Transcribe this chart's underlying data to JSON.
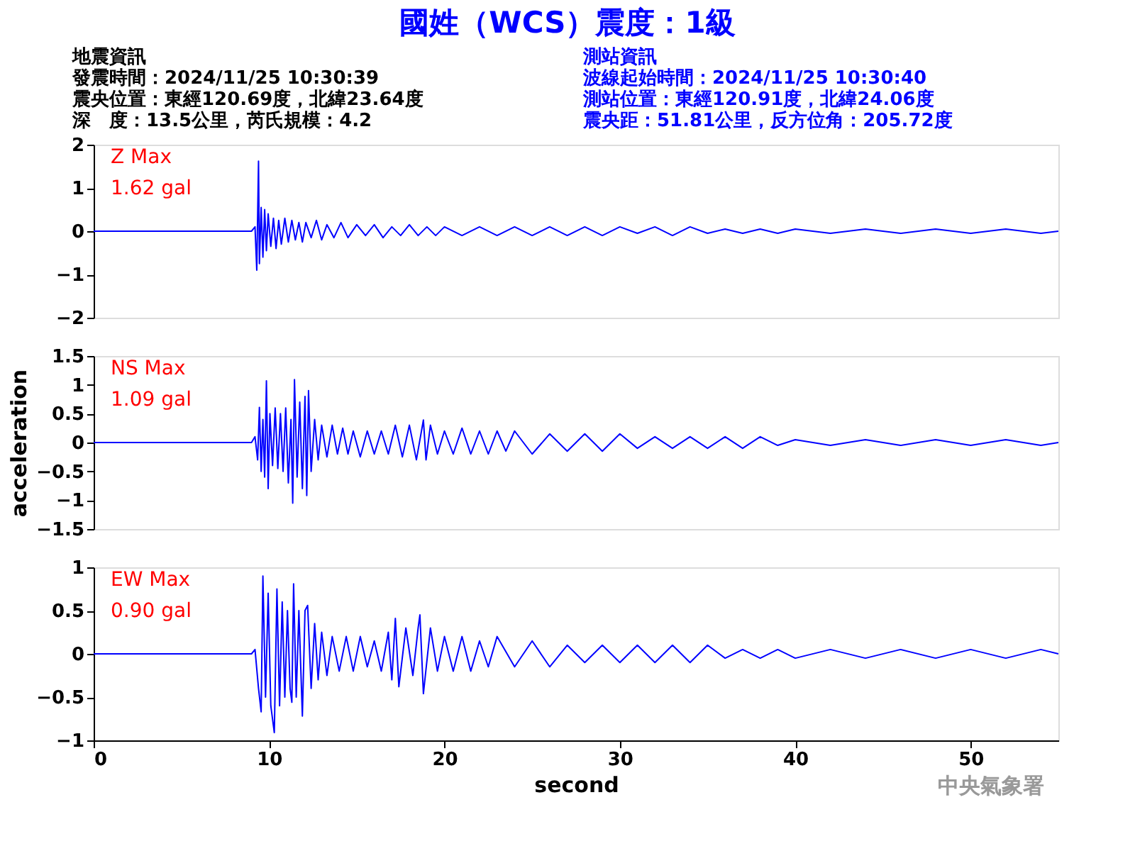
{
  "chart_data": [
    {
      "type": "line",
      "title": "國姓（WCS）震度：1級",
      "xlim": [
        0,
        55
      ],
      "xticks": [
        0,
        10,
        20,
        30,
        40,
        50
      ],
      "ylim": [
        -2,
        2
      ],
      "yticks": [
        -2,
        -1,
        0,
        1,
        2
      ],
      "tick_labels": "y",
      "grid": false,
      "annotations": [
        "Z Max",
        "1.62 gal",
        "地震資訊",
        "發震時間：2024/11/25 10:30:39",
        "震央位置：東經120.69度，北緯23.64度",
        "深　度：13.5公里，芮氏規模：4.2",
        "測站資訊",
        "波線起始時間：2024/11/25 10:30:40",
        "測站位置：東經120.91度，北緯24.06度",
        "震央距：51.81公里，反方位角：205.72度"
      ],
      "series": [
        {
          "color": "#0000ff",
          "x": [
            0,
            9.0,
            9.2,
            9.3,
            9.4,
            9.45,
            9.55,
            9.65,
            9.75,
            9.85,
            9.95,
            10.1,
            10.25,
            10.4,
            10.55,
            10.7,
            10.9,
            11.1,
            11.3,
            11.5,
            11.7,
            11.9,
            12.1,
            12.4,
            12.7,
            13.0,
            13.3,
            13.7,
            14.1,
            14.5,
            15,
            15.5,
            16,
            16.5,
            17,
            17.5,
            18,
            18.5,
            19,
            19.5,
            20,
            21,
            22,
            23,
            24,
            25,
            26,
            27,
            28,
            29,
            30,
            31,
            32,
            33,
            34,
            35,
            36,
            37,
            38,
            39,
            40,
            42,
            44,
            46,
            48,
            50,
            52,
            54,
            55
          ],
          "values": [
            0,
            0,
            0.1,
            -0.9,
            1.62,
            -0.75,
            0.55,
            -0.6,
            0.5,
            -0.45,
            0.4,
            -0.35,
            0.3,
            -0.4,
            0.25,
            -0.3,
            0.3,
            -0.25,
            0.25,
            -0.2,
            0.2,
            -0.25,
            0.2,
            -0.15,
            0.25,
            -0.2,
            0.15,
            -0.15,
            0.2,
            -0.15,
            0.15,
            -0.1,
            0.15,
            -0.15,
            0.1,
            -0.1,
            0.15,
            -0.1,
            0.1,
            -0.1,
            0.1,
            -0.1,
            0.1,
            -0.1,
            0.1,
            -0.1,
            0.1,
            -0.1,
            0.1,
            -0.1,
            0.1,
            -0.05,
            0.1,
            -0.1,
            0.1,
            -0.05,
            0.05,
            -0.05,
            0.05,
            -0.05,
            0.05,
            -0.05,
            0.05,
            -0.05,
            0.05,
            -0.05,
            0.05,
            -0.05,
            0
          ]
        }
      ]
    },
    {
      "type": "line",
      "ylabel": "acceleration",
      "xlim": [
        0,
        55
      ],
      "xticks": [
        0,
        10,
        20,
        30,
        40,
        50
      ],
      "ylim": [
        -1.5,
        1.5
      ],
      "yticks": [
        -1.5,
        -1,
        -0.5,
        0,
        0.5,
        1,
        1.5
      ],
      "tick_labels": "y",
      "grid": false,
      "annotations": [
        "NS Max",
        "1.09 gal"
      ],
      "series": [
        {
          "color": "#0000ff",
          "x": [
            0,
            9.0,
            9.2,
            9.35,
            9.45,
            9.55,
            9.65,
            9.75,
            9.85,
            9.95,
            10.05,
            10.2,
            10.35,
            10.5,
            10.65,
            10.8,
            10.95,
            11.1,
            11.25,
            11.35,
            11.45,
            11.6,
            11.75,
            11.9,
            12.05,
            12.15,
            12.25,
            12.4,
            12.6,
            12.8,
            13.0,
            13.3,
            13.6,
            13.9,
            14.2,
            14.5,
            14.8,
            15.2,
            15.6,
            16.0,
            16.4,
            16.8,
            17.2,
            17.6,
            18.0,
            18.4,
            18.8,
            18.95,
            19.2,
            19.6,
            20.0,
            20.5,
            21,
            21.5,
            22,
            22.5,
            23,
            23.5,
            24,
            25,
            26,
            27,
            28,
            29,
            30,
            31,
            32,
            33,
            34,
            35,
            36,
            37,
            38,
            39,
            40,
            42,
            44,
            46,
            48,
            50,
            52,
            54,
            55
          ],
          "values": [
            0,
            0,
            0.1,
            -0.3,
            0.61,
            -0.5,
            0.4,
            -0.6,
            1.07,
            -0.8,
            0.5,
            -0.4,
            0.6,
            -0.45,
            0.5,
            -0.5,
            0.6,
            -0.7,
            0.4,
            -1.05,
            1.09,
            -0.6,
            0.7,
            -0.8,
            0.8,
            -0.92,
            0.9,
            -0.5,
            0.4,
            -0.3,
            0.3,
            -0.25,
            0.3,
            -0.2,
            0.25,
            -0.2,
            0.2,
            -0.25,
            0.2,
            -0.2,
            0.2,
            -0.2,
            0.3,
            -0.25,
            0.3,
            -0.3,
            0.39,
            -0.3,
            0.3,
            -0.2,
            0.2,
            -0.2,
            0.25,
            -0.2,
            0.2,
            -0.2,
            0.2,
            -0.15,
            0.2,
            -0.2,
            0.15,
            -0.15,
            0.15,
            -0.15,
            0.15,
            -0.1,
            0.1,
            -0.1,
            0.1,
            -0.1,
            0.1,
            -0.1,
            0.1,
            -0.05,
            0.05,
            -0.05,
            0.05,
            -0.05,
            0.05,
            -0.05,
            0.05,
            -0.05,
            0
          ]
        }
      ]
    },
    {
      "type": "line",
      "xlabel": "second",
      "xlim": [
        0,
        55
      ],
      "xticks": [
        0,
        10,
        20,
        30,
        40,
        50
      ],
      "ylim": [
        -1,
        1
      ],
      "yticks": [
        -1,
        -0.5,
        0,
        0.5,
        1
      ],
      "grid": false,
      "annotations": [
        "EW Max",
        "0.90 gal",
        "中央氣象署"
      ],
      "series": [
        {
          "color": "#0000ff",
          "x": [
            0,
            9.0,
            9.2,
            9.4,
            9.55,
            9.65,
            9.8,
            9.95,
            10.1,
            10.3,
            10.45,
            10.6,
            10.75,
            10.9,
            11.05,
            11.2,
            11.3,
            11.4,
            11.55,
            11.7,
            11.9,
            12.05,
            12.2,
            12.4,
            12.6,
            12.8,
            13.0,
            13.3,
            13.6,
            14.0,
            14.4,
            14.8,
            15.2,
            15.6,
            16.0,
            16.4,
            16.8,
            17.0,
            17.2,
            17.4,
            17.8,
            18.2,
            18.5,
            18.6,
            18.8,
            19.2,
            19.6,
            20.0,
            20.5,
            21,
            21.5,
            22,
            22.5,
            23,
            24,
            25,
            26,
            27,
            28,
            29,
            30,
            31,
            32,
            33,
            34,
            35,
            36,
            37,
            38,
            39,
            40,
            42,
            44,
            46,
            48,
            50,
            52,
            54,
            55
          ],
          "values": [
            0,
            0,
            0.05,
            -0.4,
            -0.67,
            0.9,
            -0.5,
            0.7,
            -0.6,
            -0.91,
            0.75,
            -0.6,
            0.6,
            -0.5,
            0.5,
            -0.4,
            -0.56,
            0.81,
            -0.5,
            0.5,
            -0.72,
            0.5,
            0.56,
            -0.4,
            0.35,
            -0.3,
            0.25,
            -0.25,
            0.2,
            -0.2,
            0.2,
            -0.2,
            0.2,
            -0.15,
            0.15,
            -0.2,
            0.25,
            -0.3,
            0.41,
            -0.38,
            0.3,
            -0.25,
            0.3,
            0.45,
            -0.46,
            0.3,
            -0.2,
            0.2,
            -0.2,
            0.2,
            -0.2,
            0.15,
            -0.15,
            0.2,
            -0.15,
            0.15,
            -0.15,
            0.1,
            -0.1,
            0.1,
            -0.1,
            0.1,
            -0.1,
            0.1,
            -0.1,
            0.1,
            -0.05,
            0.05,
            -0.05,
            0.05,
            -0.05,
            0.05,
            -0.05,
            0.05,
            -0.05,
            0.05,
            -0.05,
            0.05,
            0
          ]
        }
      ]
    }
  ]
}
